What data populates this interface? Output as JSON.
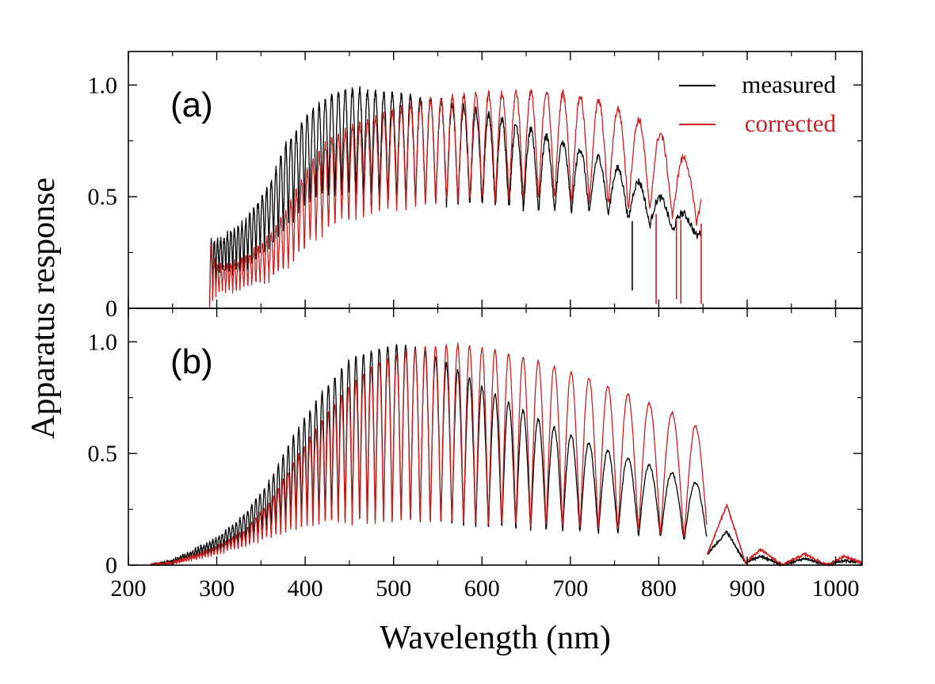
{
  "chart_data": {
    "type": "line",
    "xlabel": "Wavelength (nm)",
    "ylabel": "Apparatus response",
    "xlim": [
      200,
      1030
    ],
    "ylim": [
      0,
      1.15
    ],
    "x_ticks": [
      200,
      300,
      400,
      500,
      600,
      700,
      800,
      900,
      1000
    ],
    "y_ticks": [
      0,
      0.5,
      1.0
    ],
    "y_tick_labels": [
      "0",
      "0.5",
      "1.0"
    ],
    "grid": false,
    "legend_position": "top-right",
    "colors": {
      "measured": "#000000",
      "corrected": "#cc1f1f"
    },
    "panels": [
      {
        "label": "(a)",
        "legend": [
          {
            "name": "measured",
            "color": "#000000"
          },
          {
            "name": "corrected",
            "color": "#cc1f1f"
          }
        ],
        "series": [
          {
            "name": "measured",
            "x": [
              292,
              300,
              330,
              360,
              380,
              400,
              420,
              440,
              460,
              480,
              500,
              520,
              540,
              560,
              580,
              600,
              620,
              640,
              660,
              680,
              700,
              720,
              740,
              760,
              780,
              800,
              820,
              848
            ],
            "peak": [
              0.3,
              0.3,
              0.38,
              0.55,
              0.75,
              0.85,
              0.93,
              0.97,
              0.98,
              0.97,
              0.96,
              0.95,
              0.94,
              0.92,
              0.9,
              0.88,
              0.85,
              0.82,
              0.79,
              0.76,
              0.73,
              0.7,
              0.66,
              0.61,
              0.56,
              0.5,
              0.45,
              0.36
            ],
            "trough": [
              0.02,
              0.15,
              0.17,
              0.28,
              0.36,
              0.45,
              0.5,
              0.5,
              0.5,
              0.49,
              0.48,
              0.47,
              0.46,
              0.46,
              0.45,
              0.45,
              0.44,
              0.44,
              0.43,
              0.43,
              0.43,
              0.42,
              0.42,
              0.4,
              0.38,
              0.36,
              0.34,
              0.32
            ],
            "dips": [
              {
                "x": 770,
                "y": 0.08
              }
            ]
          },
          {
            "name": "corrected",
            "x": [
              292,
              300,
              330,
              360,
              380,
              400,
              420,
              440,
              460,
              480,
              500,
              520,
              540,
              560,
              580,
              600,
              620,
              640,
              660,
              680,
              700,
              720,
              740,
              760,
              780,
              800,
              820,
              848
            ],
            "peak": [
              0.31,
              0.18,
              0.22,
              0.32,
              0.45,
              0.6,
              0.72,
              0.79,
              0.82,
              0.85,
              0.88,
              0.91,
              0.93,
              0.94,
              0.95,
              0.96,
              0.96,
              0.97,
              0.97,
              0.97,
              0.96,
              0.94,
              0.92,
              0.88,
              0.84,
              0.79,
              0.71,
              0.6
            ],
            "trough": [
              0.0,
              0.07,
              0.09,
              0.13,
              0.18,
              0.27,
              0.33,
              0.38,
              0.41,
              0.42,
              0.44,
              0.45,
              0.46,
              0.47,
              0.47,
              0.48,
              0.48,
              0.48,
              0.48,
              0.48,
              0.47,
              0.47,
              0.46,
              0.45,
              0.44,
              0.42,
              0.4,
              0.38
            ],
            "dips": [
              {
                "x": 797,
                "y": 0.02
              },
              {
                "x": 820,
                "y": 0.04
              },
              {
                "x": 825,
                "y": 0.02
              },
              {
                "x": 848,
                "y": 0.02
              }
            ]
          }
        ]
      },
      {
        "label": "(b)",
        "series": [
          {
            "name": "measured",
            "x": [
              225,
              250,
              280,
              300,
              330,
              360,
              390,
              420,
              450,
              480,
              510,
              540,
              570,
              600,
              630,
              660,
              690,
              720,
              750,
              780,
              810,
              840,
              855
            ],
            "peak": [
              0.0,
              0.02,
              0.08,
              0.12,
              0.22,
              0.38,
              0.6,
              0.78,
              0.92,
              0.97,
              0.99,
              0.95,
              0.88,
              0.8,
              0.73,
              0.66,
              0.6,
              0.55,
              0.5,
              0.46,
              0.42,
              0.38,
              0.3
            ],
            "trough": [
              0.0,
              0.01,
              0.04,
              0.06,
              0.1,
              0.15,
              0.18,
              0.19,
              0.19,
              0.19,
              0.19,
              0.18,
              0.17,
              0.16,
              0.16,
              0.15,
              0.15,
              0.14,
              0.14,
              0.13,
              0.12,
              0.1,
              0.06
            ]
          },
          {
            "name": "corrected",
            "x": [
              225,
              250,
              280,
              300,
              330,
              360,
              390,
              420,
              450,
              480,
              510,
              540,
              570,
              600,
              630,
              660,
              690,
              720,
              750,
              780,
              810,
              840,
              855
            ],
            "peak": [
              0.0,
              0.01,
              0.05,
              0.08,
              0.15,
              0.28,
              0.48,
              0.65,
              0.8,
              0.9,
              0.95,
              0.98,
              0.99,
              0.97,
              0.95,
              0.92,
              0.88,
              0.84,
              0.79,
              0.74,
              0.69,
              0.64,
              0.5
            ],
            "trough": [
              0.0,
              0.01,
              0.03,
              0.05,
              0.08,
              0.12,
              0.16,
              0.18,
              0.18,
              0.18,
              0.18,
              0.18,
              0.18,
              0.17,
              0.17,
              0.16,
              0.16,
              0.15,
              0.15,
              0.14,
              0.13,
              0.11,
              0.07
            ]
          }
        ],
        "tail": {
          "x": [
            855,
            877,
            898,
            915,
            940,
            965,
            990,
            1010,
            1030
          ],
          "measured": [
            0.05,
            0.15,
            0.01,
            0.04,
            0.0,
            0.03,
            0.0,
            0.02,
            0.01
          ],
          "corrected": [
            0.05,
            0.27,
            0.01,
            0.07,
            0.0,
            0.05,
            0.0,
            0.04,
            0.01
          ]
        }
      }
    ]
  }
}
